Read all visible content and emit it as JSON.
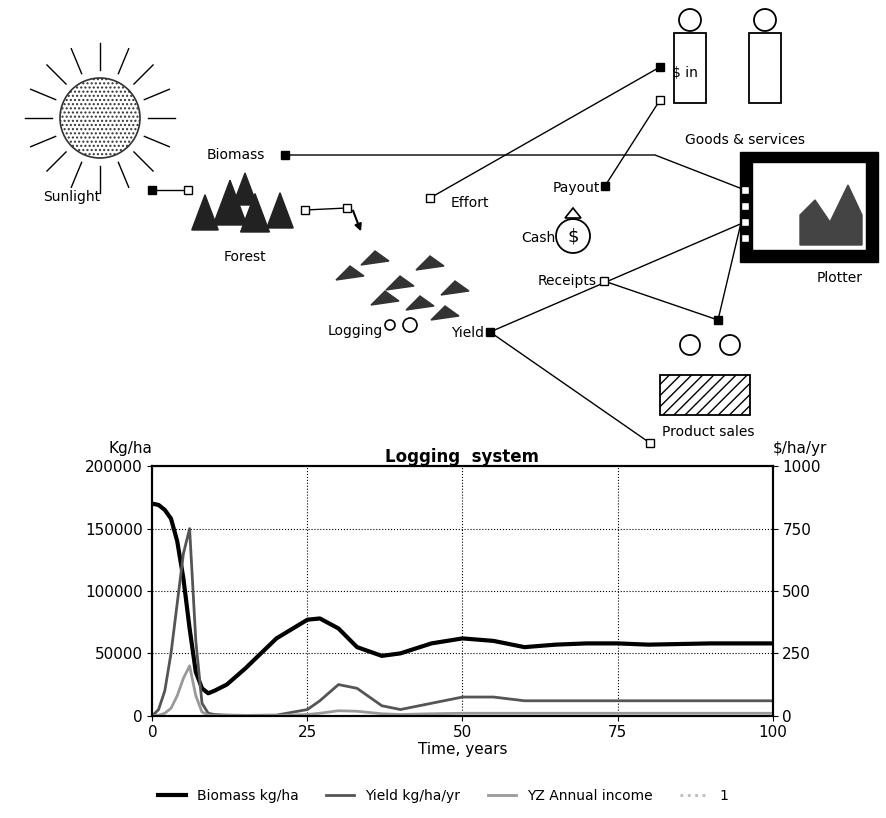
{
  "diagram": {
    "nodes": [
      {
        "label": "Sunlight"
      },
      {
        "label": "Forest"
      },
      {
        "label": "Biomass"
      },
      {
        "label": "Logging"
      },
      {
        "label": "Effort"
      },
      {
        "label": "Yield"
      },
      {
        "label": "Cash"
      },
      {
        "label": "Payout"
      },
      {
        "label": "Receipts"
      },
      {
        "label": "Goods & services"
      },
      {
        "label": "$ in"
      },
      {
        "label": "Product sales"
      },
      {
        "label": "Plotter"
      }
    ],
    "cash_symbol": "$"
  },
  "chart_data": {
    "type": "line",
    "title": "Logging  system",
    "x_label": "Time, years",
    "y_label": "Kg/ha",
    "y2_label": "$/ha/yr",
    "x": [
      0,
      1,
      2,
      3,
      4,
      5,
      6,
      7,
      8,
      9,
      10,
      12,
      15,
      20,
      25,
      27,
      30,
      33,
      37,
      40,
      45,
      50,
      55,
      60,
      65,
      70,
      75,
      80,
      90,
      100
    ],
    "xlim": [
      0,
      100
    ],
    "xticks": [
      0,
      25,
      50,
      75,
      100
    ],
    "ylim": [
      0,
      200000
    ],
    "yticks": [
      0,
      50000,
      100000,
      150000,
      200000
    ],
    "y2lim": [
      0,
      1000
    ],
    "y2ticks": [
      0,
      250,
      500,
      750,
      1000
    ],
    "grid": true,
    "legend": "lower center",
    "series": [
      {
        "name": "Biomass kg/ha",
        "color": "#000000",
        "line_style": "solid",
        "values": [
          170000,
          169000,
          165000,
          158000,
          140000,
          110000,
          70000,
          35000,
          22000,
          18000,
          20000,
          25000,
          38000,
          62000,
          77000,
          78000,
          70000,
          55000,
          48000,
          50000,
          58000,
          62000,
          60000,
          55000,
          57000,
          58000,
          58000,
          57000,
          58000,
          58000
        ]
      },
      {
        "name": "Yield kg/ha/yr",
        "color": "#555555",
        "line_style": "solid",
        "values": [
          0,
          5000,
          20000,
          50000,
          90000,
          130000,
          150000,
          60000,
          10000,
          2000,
          1000,
          500,
          300,
          500,
          5000,
          12000,
          25000,
          22000,
          8000,
          5000,
          10000,
          15000,
          15000,
          12000,
          12000,
          12000,
          12000,
          12000,
          12000,
          12000
        ]
      },
      {
        "name": "YZ Annual income",
        "color": "#999999",
        "line_style": "solid",
        "axis": "y2",
        "values": [
          0,
          2,
          10,
          30,
          80,
          150,
          200,
          80,
          15,
          3,
          1,
          1,
          1,
          1,
          5,
          10,
          20,
          18,
          8,
          5,
          8,
          10,
          10,
          10,
          10,
          10,
          10,
          10,
          10,
          10
        ]
      },
      {
        "name": "1",
        "color": "#bbbbbb",
        "line_style": "dotted",
        "axis": "y2",
        "values": [
          0,
          0,
          0,
          0,
          0,
          0,
          0,
          0,
          0,
          0,
          0,
          0,
          0,
          0,
          0,
          0,
          0,
          0,
          0,
          0,
          0,
          0,
          0,
          0,
          0,
          0,
          0,
          0,
          0,
          0
        ]
      }
    ]
  }
}
